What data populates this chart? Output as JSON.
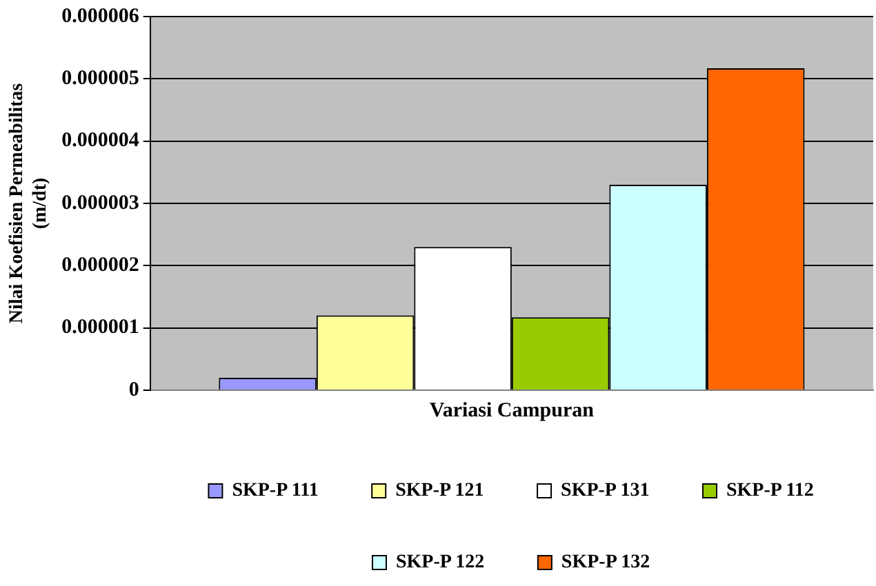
{
  "chart_data": {
    "type": "bar",
    "xlabel": "Variasi Campuran",
    "ylabel": "Nilai Koefisien Permeabilitas\n(m/dt)",
    "categories": [
      null
    ],
    "series": [
      {
        "name": "SKP-P 111",
        "color": "#9999ff",
        "values": [
          2e-07
        ]
      },
      {
        "name": "SKP-P 121",
        "color": "#ffff99",
        "values": [
          1.2e-06
        ]
      },
      {
        "name": "SKP-P 131",
        "color": "#ffffff",
        "values": [
          2.3e-06
        ]
      },
      {
        "name": "SKP-P 112",
        "color": "#99cc00",
        "values": [
          1.17e-06
        ]
      },
      {
        "name": "SKP-P 122",
        "color": "#ccffff",
        "values": [
          3.3e-06
        ]
      },
      {
        "name": "SKP-P 132",
        "color": "#ff6600",
        "values": [
          5.17e-06
        ]
      }
    ],
    "ylim": [
      0,
      6e-06
    ],
    "yticks": [
      0,
      {
        "value": 1e-06,
        "label": "0.000001"
      },
      {
        "value": 2e-06,
        "label": "0.000002"
      },
      {
        "value": 3e-06,
        "label": "0.000003"
      },
      {
        "value": 4e-06,
        "label": "0.000004"
      },
      {
        "value": 5e-06,
        "label": "0.000005"
      },
      {
        "value": 6e-06,
        "label": "0.000006"
      }
    ],
    "grid": "y",
    "legend": "bottom"
  }
}
